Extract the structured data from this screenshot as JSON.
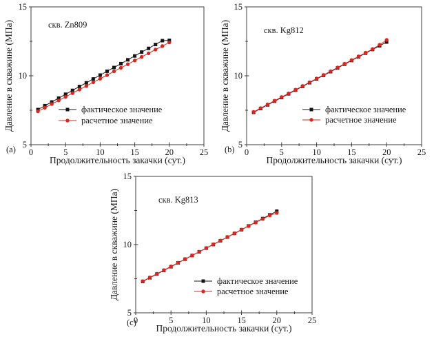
{
  "page": {
    "background": "#ffffff"
  },
  "colors": {
    "frame": "#3d3d3d",
    "tick": "#3d3d3d",
    "text": "#1a1a1a",
    "actual": "#141414",
    "calculated": "#e2231c"
  },
  "chart_data": [
    {
      "type": "line",
      "panel_label": "(a)",
      "title": "скв. Zn809",
      "xlabel": "Продолжительность закачки (сут.)",
      "ylabel": "Давление в скважине (МПа)",
      "xlim": [
        0,
        25
      ],
      "ylim": [
        5,
        15
      ],
      "xticks": [
        0,
        5,
        10,
        15,
        20,
        25
      ],
      "yticks": [
        5,
        10,
        15
      ],
      "xticks_minor": [
        2.5,
        7.5,
        12.5,
        17.5,
        22.5
      ],
      "yticks_minor": [
        7.5,
        12.5
      ],
      "grid": false,
      "legend_position": "inside-bottom-right",
      "x": [
        1,
        2,
        3,
        4,
        5,
        6,
        7,
        8,
        9,
        10,
        11,
        12,
        13,
        14,
        15,
        16,
        17,
        18,
        19,
        20
      ],
      "series": [
        {
          "name": "фактическое значение",
          "marker": "square",
          "color": "#141414",
          "values": [
            7.55,
            7.83,
            8.1,
            8.38,
            8.66,
            8.94,
            9.22,
            9.49,
            9.77,
            10.05,
            10.33,
            10.6,
            10.88,
            11.16,
            11.44,
            11.72,
            11.99,
            12.27,
            12.55,
            12.57
          ]
        },
        {
          "name": "расчетное значение",
          "marker": "circle",
          "color": "#e2231c",
          "values": [
            7.42,
            7.68,
            7.95,
            8.21,
            8.47,
            8.74,
            9.0,
            9.26,
            9.53,
            9.79,
            10.05,
            10.32,
            10.58,
            10.84,
            11.11,
            11.37,
            11.63,
            11.9,
            12.16,
            12.42
          ]
        }
      ]
    },
    {
      "type": "line",
      "panel_label": "(b)",
      "title": "скв. Kg812",
      "xlabel": "Продолжительность закачки (сут.)",
      "ylabel": "Давление в скважине (МПа)",
      "xlim": [
        0,
        25
      ],
      "ylim": [
        5,
        15
      ],
      "xticks": [
        0,
        5,
        10,
        15,
        20,
        25
      ],
      "yticks": [
        5,
        10,
        15
      ],
      "xticks_minor": [
        2.5,
        7.5,
        12.5,
        17.5,
        22.5
      ],
      "yticks_minor": [
        7.5,
        12.5
      ],
      "grid": false,
      "legend_position": "inside-bottom-right",
      "x": [
        1,
        2,
        3,
        4,
        5,
        6,
        7,
        8,
        9,
        10,
        11,
        12,
        13,
        14,
        15,
        16,
        17,
        18,
        19,
        20
      ],
      "series": [
        {
          "name": "фактическое значение",
          "marker": "square",
          "color": "#141414",
          "values": [
            7.35,
            7.62,
            7.89,
            8.16,
            8.42,
            8.69,
            8.96,
            9.23,
            9.5,
            9.77,
            10.03,
            10.3,
            10.57,
            10.84,
            11.11,
            11.38,
            11.64,
            11.91,
            12.18,
            12.45
          ]
        },
        {
          "name": "расчетное значение",
          "marker": "circle",
          "color": "#e2231c",
          "values": [
            7.38,
            7.65,
            7.92,
            8.19,
            8.46,
            8.72,
            8.99,
            9.26,
            9.53,
            9.8,
            10.06,
            10.33,
            10.6,
            10.87,
            11.14,
            11.41,
            11.67,
            11.94,
            12.25,
            12.6
          ]
        }
      ]
    },
    {
      "type": "line",
      "panel_label": "(c)",
      "title": "скв. Kg813",
      "xlabel": "Продолжительность закачки (сут.)",
      "ylabel": "Давление в скважине (МПа)",
      "xlim": [
        0,
        25
      ],
      "ylim": [
        5,
        15
      ],
      "xticks": [
        0,
        5,
        10,
        15,
        20,
        25
      ],
      "yticks": [
        5,
        10,
        15
      ],
      "xticks_minor": [
        2.5,
        7.5,
        12.5,
        17.5,
        22.5
      ],
      "yticks_minor": [
        7.5,
        12.5
      ],
      "grid": false,
      "legend_position": "inside-bottom-right",
      "x": [
        1,
        2,
        3,
        4,
        5,
        6,
        7,
        8,
        9,
        10,
        11,
        12,
        13,
        14,
        15,
        16,
        17,
        18,
        19,
        20
      ],
      "series": [
        {
          "name": "фактическое значение",
          "marker": "square",
          "color": "#141414",
          "values": [
            7.3,
            7.57,
            7.84,
            8.11,
            8.38,
            8.66,
            8.93,
            9.2,
            9.47,
            9.74,
            10.01,
            10.28,
            10.55,
            10.82,
            11.09,
            11.37,
            11.64,
            11.91,
            12.18,
            12.45
          ]
        },
        {
          "name": "расчетное значение",
          "marker": "circle",
          "color": "#e2231c",
          "values": [
            7.32,
            7.59,
            7.86,
            8.13,
            8.4,
            8.67,
            8.94,
            9.21,
            9.48,
            9.75,
            10.02,
            10.29,
            10.56,
            10.83,
            11.1,
            11.36,
            11.62,
            11.88,
            12.14,
            12.32
          ]
        }
      ]
    }
  ]
}
